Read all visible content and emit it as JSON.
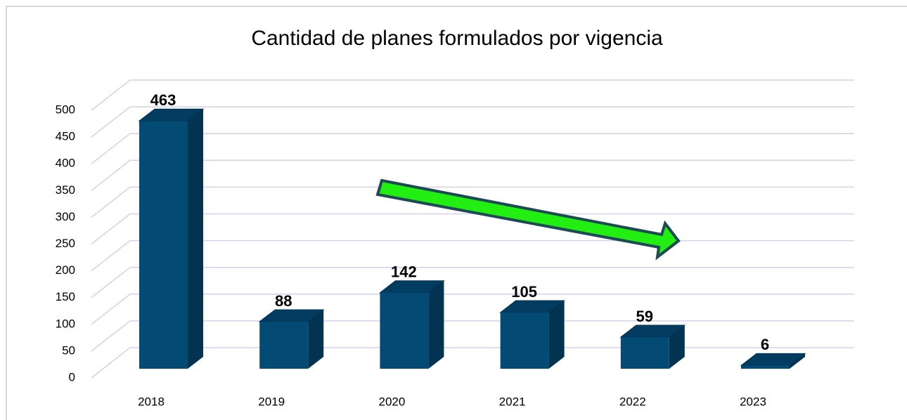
{
  "chart_data": {
    "type": "bar3d",
    "title": "Cantidad de planes formulados por vigencia",
    "categories": [
      "2018",
      "2019",
      "2020",
      "2021",
      "2022",
      "2023"
    ],
    "values": [
      463,
      88,
      142,
      105,
      59,
      6
    ],
    "color": "#034a74",
    "ylim": [
      0,
      500
    ],
    "yticks": [
      0,
      50,
      100,
      150,
      200,
      250,
      300,
      350,
      400,
      450,
      500
    ],
    "grid": true
  }
}
